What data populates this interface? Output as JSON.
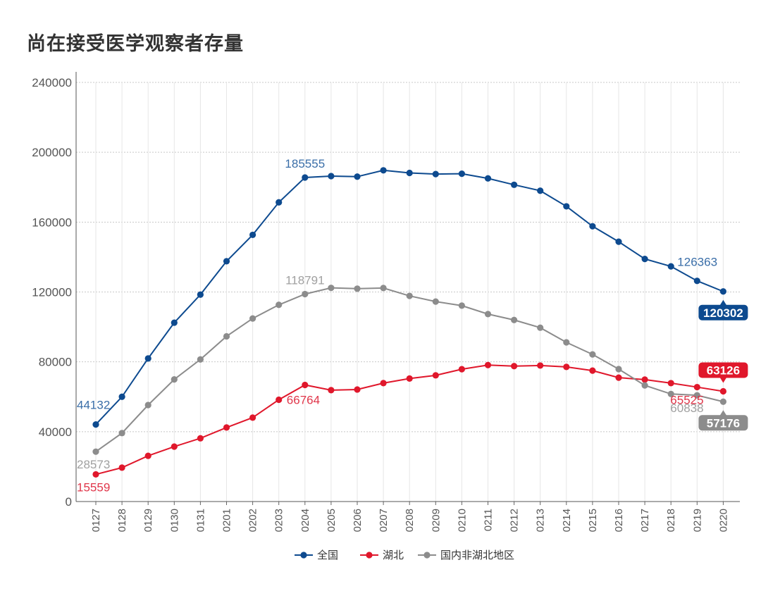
{
  "title": "尚在接受医学观察者存量",
  "colors": {
    "national": "#0d4a8f",
    "hubei": "#e0172b",
    "other": "#8c8c8c",
    "national_label": "#3a6ea8",
    "hubei_label": "#e0364a",
    "other_label": "#a0a0a0"
  },
  "chart_data": {
    "type": "line",
    "title": "尚在接受医学观察者存量",
    "ylim": [
      0,
      240000
    ],
    "yticks": [
      0,
      40000,
      80000,
      120000,
      160000,
      200000,
      240000
    ],
    "grid": true,
    "legend_position": "bottom",
    "categories": [
      "0127",
      "0128",
      "0129",
      "0130",
      "0131",
      "0201",
      "0202",
      "0203",
      "0204",
      "0205",
      "0206",
      "0207",
      "0208",
      "0209",
      "0210",
      "0211",
      "0212",
      "0213",
      "0214",
      "0215",
      "0216",
      "0217",
      "0218",
      "0219",
      "0220"
    ],
    "series": [
      {
        "name": "全国",
        "color_key": "national",
        "values": [
          44132,
          59990,
          81947,
          102427,
          118478,
          137594,
          152700,
          171329,
          185555,
          186354,
          186045,
          189660,
          188183,
          187518,
          187728,
          185037,
          181386,
          177984,
          169039,
          157647,
          148787,
          138904,
          134659,
          126363,
          120302
        ]
      },
      {
        "name": "湖北",
        "color_key": "hubei",
        "values": [
          15559,
          19406,
          26184,
          31458,
          36217,
          42394,
          48061,
          58299,
          66764,
          63794,
          64152,
          67802,
          70438,
          72271,
          75774,
          78155,
          77555,
          77880,
          77083,
          74963,
          70933,
          69845,
          67799,
          65525,
          63126
        ]
      },
      {
        "name": "国内非湖北地区",
        "color_key": "other",
        "values": [
          28573,
          39201,
          55257,
          69923,
          81365,
          94604,
          104831,
          112629,
          118791,
          122348,
          121893,
          122268,
          117759,
          114512,
          112183,
          107346,
          103962,
          99552,
          91159,
          84262,
          75826,
          66513,
          61590,
          60838,
          57176
        ]
      }
    ],
    "annotations": [
      {
        "series": 0,
        "index": 0,
        "text": "44132",
        "pos": "above-left"
      },
      {
        "series": 0,
        "index": 8,
        "text": "185555",
        "pos": "above"
      },
      {
        "series": 0,
        "index": 23,
        "text": "126363",
        "pos": "above-right"
      },
      {
        "series": 0,
        "index": 24,
        "text": "120302",
        "pos": "badge-below"
      },
      {
        "series": 1,
        "index": 0,
        "text": "15559",
        "pos": "below-left"
      },
      {
        "series": 1,
        "index": 8,
        "text": "66764",
        "pos": "below-right"
      },
      {
        "series": 1,
        "index": 23,
        "text": "65525",
        "pos": "below-left"
      },
      {
        "series": 1,
        "index": 24,
        "text": "63126",
        "pos": "badge-above"
      },
      {
        "series": 2,
        "index": 0,
        "text": "28573",
        "pos": "below-left"
      },
      {
        "series": 2,
        "index": 8,
        "text": "118791",
        "pos": "above"
      },
      {
        "series": 2,
        "index": 23,
        "text": "60838",
        "pos": "below-left"
      },
      {
        "series": 2,
        "index": 24,
        "text": "57176",
        "pos": "badge-below"
      }
    ],
    "legend": [
      "全国",
      "湖北",
      "国内非湖北地区"
    ]
  }
}
